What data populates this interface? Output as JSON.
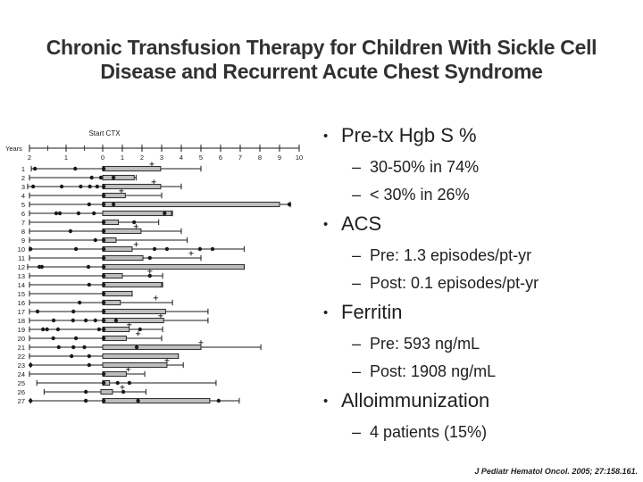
{
  "slide": {
    "title_lines": [
      "Chronic Transfusion Therapy for Children With Sickle Cell",
      "Disease and Recurrent Acute Chest Syndrome"
    ],
    "citation": "J Pediatr Hematol Oncol. 2005; 27:158.161."
  },
  "markers": {
    "level1": "•",
    "level2": "–"
  },
  "bullets": [
    {
      "label": "Pre-tx Hgb S %",
      "subs": [
        "30-50% in 74%",
        "< 30% in 26%"
      ]
    },
    {
      "label": "ACS",
      "subs": [
        "Pre: 1.3 episodes/pt-yr",
        "Post: 0.1 episodes/pt-yr"
      ]
    },
    {
      "label": "Ferritin",
      "subs": [
        "Pre: 593 ng/mL",
        "Post: 1908 ng/mL"
      ]
    },
    {
      "label": "Alloimmunization",
      "subs": [
        "4 patients (15%)"
      ]
    }
  ],
  "colors": {
    "title_text": "#313131",
    "body_text": "#1f1f1f",
    "chart_ink": "#1a1a1a",
    "bar_fill": "#bdbdbd",
    "background": "#ffffff"
  },
  "chart_data": {
    "type": "scatter",
    "title": "Start CTX",
    "xlabel": "Years",
    "x_tick_values": [
      -2,
      -1,
      0,
      1,
      2,
      3,
      4,
      5,
      6,
      7,
      8,
      9,
      10
    ],
    "x_tick_labels": [
      "2",
      "1",
      "0",
      "1",
      "2",
      "3",
      "4",
      "5",
      "6",
      "7",
      "8",
      "9",
      "10"
    ],
    "minor_ticks": [
      -1.5,
      -0.5
    ],
    "note": "Per-patient timeline: x = years relative to start of chronic transfusion (CTX); pre-CTX axis expanded ~2x; dots = ACS episodes; gray bar = CTX period; line = observation span; + = event marker",
    "patients": [
      {
        "id": 1,
        "line": [
          -1.95,
          5.0
        ],
        "bar": [
          0,
          2.95
        ],
        "dots": [
          -1.85,
          -0.75,
          0.05
        ],
        "cross": [
          2.5
        ]
      },
      {
        "id": 2,
        "line": [
          -2.0,
          1.7
        ],
        "bar": [
          0,
          1.6
        ],
        "dots": [
          -0.3,
          -0.05,
          0.55
        ],
        "cross": []
      },
      {
        "id": 3,
        "line": [
          -2.05,
          4.0
        ],
        "bar": [
          0,
          2.95
        ],
        "dots": [
          -1.9,
          -1.12,
          -0.6,
          -0.35,
          -0.15,
          0.05
        ],
        "cross": [
          2.6
        ]
      },
      {
        "id": 4,
        "line": [
          -2.0,
          3.0
        ],
        "bar": [
          0,
          1.15
        ],
        "dots": [
          0.05
        ],
        "cross": [
          0.95
        ]
      },
      {
        "id": 5,
        "line": [
          -2.0,
          9.55
        ],
        "bar": [
          0,
          9.0
        ],
        "dots": [
          -0.37,
          0.05,
          0.55,
          9.5
        ],
        "cross": []
      },
      {
        "id": 6,
        "line": [
          -2.0,
          3.55
        ],
        "bar": [
          0,
          3.5
        ],
        "dots": [
          -1.27,
          -1.17,
          -0.66,
          -0.24,
          3.15
        ],
        "cross": []
      },
      {
        "id": 7,
        "line": [
          -2.0,
          2.85
        ],
        "bar": [
          0,
          0.8
        ],
        "dots": [
          0.05,
          1.6
        ],
        "cross": []
      },
      {
        "id": 8,
        "line": [
          -2.0,
          4.0
        ],
        "bar": [
          0,
          1.95
        ],
        "dots": [
          -0.88,
          0.05
        ],
        "cross": [
          1.7
        ]
      },
      {
        "id": 9,
        "line": [
          -2.0,
          4.3
        ],
        "bar": [
          0,
          0.68
        ],
        "dots": [
          -0.2,
          0.05
        ],
        "cross": []
      },
      {
        "id": 10,
        "line": [
          -2.0,
          7.2
        ],
        "bar": [
          0,
          1.5
        ],
        "dots": [
          -1.97,
          -0.73,
          0.05,
          2.64,
          3.27,
          4.95,
          5.59
        ],
        "cross": [
          1.7
        ]
      },
      {
        "id": 11,
        "line": [
          -2.0,
          5.0
        ],
        "bar": [
          0,
          2.05
        ],
        "dots": [
          0.05,
          2.4
        ],
        "cross": [
          4.5
        ]
      },
      {
        "id": 12,
        "line": [
          -2.05,
          7.2
        ],
        "bar": [
          0,
          7.2
        ],
        "dots": [
          -1.73,
          -1.66,
          -0.39,
          0.05
        ],
        "cross": []
      },
      {
        "id": 13,
        "line": [
          -2.0,
          3.05
        ],
        "bar": [
          0,
          1.0
        ],
        "dots": [
          0.05,
          2.4
        ],
        "cross": [
          2.4
        ]
      },
      {
        "id": 14,
        "line": [
          -2.0,
          3.05
        ],
        "bar": [
          0,
          3.0
        ],
        "dots": [
          -0.37,
          0.05
        ],
        "cross": []
      },
      {
        "id": 15,
        "line": [
          -2.0,
          1.5
        ],
        "bar": [
          0,
          1.5
        ],
        "dots": [
          0.05
        ],
        "cross": []
      },
      {
        "id": 16,
        "line": [
          -2.0,
          3.55
        ],
        "bar": [
          0,
          0.9
        ],
        "dots": [
          -0.63,
          0.05
        ],
        "cross": [
          2.7
        ]
      },
      {
        "id": 17,
        "line": [
          -2.0,
          5.36
        ],
        "bar": [
          0,
          3.2
        ],
        "dots": [
          -1.78,
          -0.8,
          0.05
        ],
        "cross": []
      },
      {
        "id": 18,
        "line": [
          -2.0,
          5.36
        ],
        "bar": [
          0,
          3.1
        ],
        "dots": [
          -1.34,
          -0.81,
          -0.46,
          -0.2,
          0.05,
          0.68
        ],
        "cross": [
          2.95
        ]
      },
      {
        "id": 19,
        "line": [
          -2.0,
          3.05
        ],
        "bar": [
          0,
          1.35
        ],
        "dots": [
          -1.63,
          -1.52,
          -1.22,
          -0.1,
          0.05,
          1.9
        ],
        "cross": [
          1.35
        ]
      },
      {
        "id": 20,
        "line": [
          -2.0,
          3.0
        ],
        "bar": [
          0,
          1.2
        ],
        "dots": [
          -1.35,
          -0.73,
          0.05
        ],
        "cross": [
          1.8
        ]
      },
      {
        "id": 21,
        "line": [
          -2.0,
          8.05
        ],
        "bar": [
          0,
          5.0
        ],
        "dots": [
          -1.2,
          -0.8,
          -0.5,
          1.73
        ],
        "cross": [
          5.0
        ]
      },
      {
        "id": 22,
        "line": [
          -2.0,
          3.85
        ],
        "bar": [
          0,
          3.85
        ],
        "dots": [
          -0.85,
          -0.37
        ],
        "cross": []
      },
      {
        "id": 23,
        "line": [
          -1.97,
          4.1
        ],
        "bar": [
          0,
          3.27
        ],
        "dots": [
          -1.97,
          -0.37
        ],
        "cross": [
          3.27
        ]
      },
      {
        "id": 24,
        "line": [
          -2.0,
          2.14
        ],
        "bar": [
          0,
          1.2
        ],
        "dots": [
          0.05
        ],
        "cross": [
          1.3
        ]
      },
      {
        "id": 25,
        "line": [
          -1.8,
          5.77
        ],
        "bar": [
          0,
          0.35
        ],
        "dots": [
          0.05,
          0.76,
          1.36
        ],
        "cross": []
      },
      {
        "id": 26,
        "line": [
          -1.6,
          2.2
        ],
        "bar": [
          -0.05,
          0.5
        ],
        "dots": [
          -0.46,
          1.05
        ],
        "cross": [
          1.0
        ]
      },
      {
        "id": 27,
        "line": [
          -1.97,
          6.95
        ],
        "bar": [
          0,
          5.45
        ],
        "dots": [
          -1.97,
          -0.46,
          0.05,
          1.8,
          5.9
        ],
        "cross": []
      }
    ]
  }
}
